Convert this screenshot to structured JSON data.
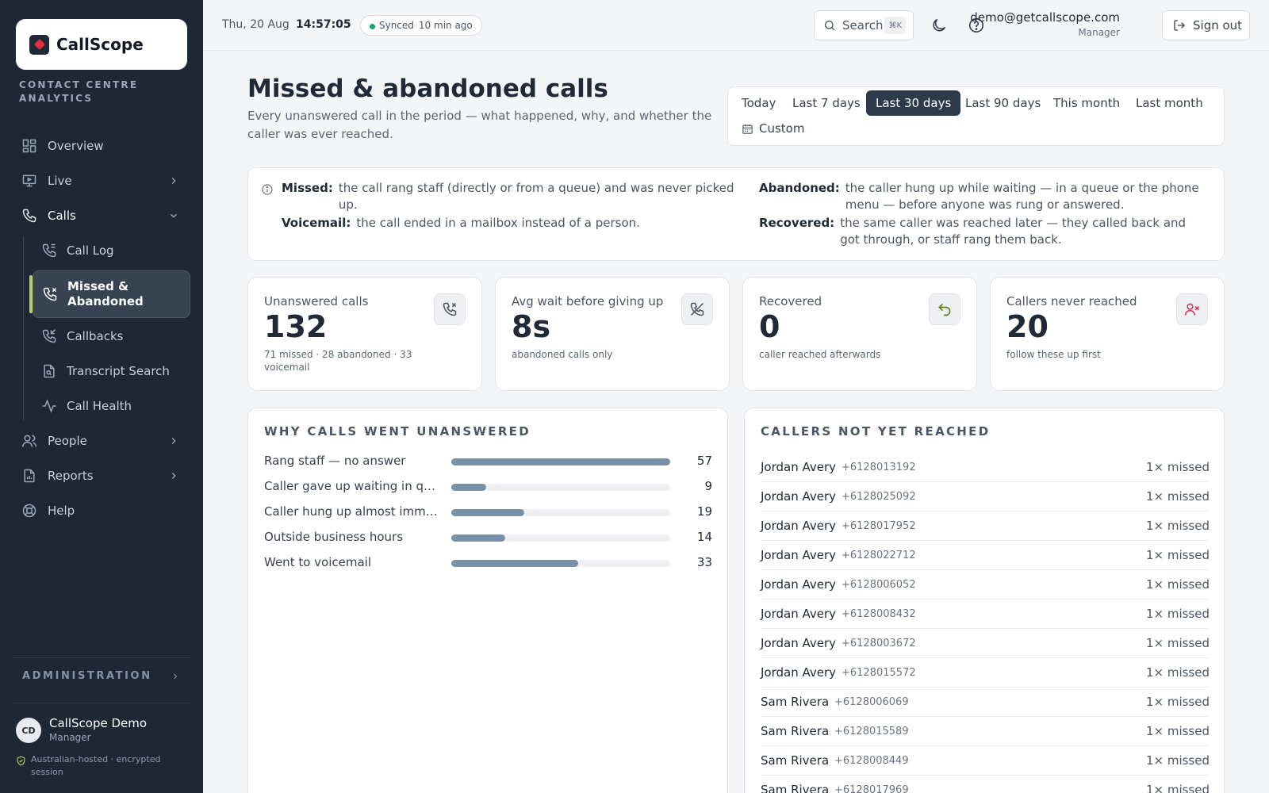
{
  "brand": {
    "name": "CallScope",
    "tagline": "CONTACT CENTRE ANALYTICS"
  },
  "sidebar": {
    "items": [
      {
        "label": "Overview",
        "icon": "grid-icon"
      },
      {
        "label": "Live",
        "icon": "monitor-icon"
      },
      {
        "label": "Calls",
        "icon": "phone-icon"
      }
    ],
    "calls_sub": [
      {
        "label": "Call Log",
        "icon": "phone-log-icon"
      },
      {
        "label": "Missed & Abandoned",
        "icon": "phone-missed-icon"
      },
      {
        "label": "Callbacks",
        "icon": "phone-callback-icon"
      },
      {
        "label": "Transcript Search",
        "icon": "file-search-icon"
      },
      {
        "label": "Call Health",
        "icon": "activity-icon"
      }
    ],
    "after": [
      {
        "label": "People",
        "icon": "users-icon"
      },
      {
        "label": "Reports",
        "icon": "report-icon"
      },
      {
        "label": "Help",
        "icon": "lifebuoy-icon"
      }
    ],
    "admin_label": "ADMINISTRATION",
    "user": {
      "initials": "CD",
      "name": "CallScope Demo",
      "role": "Manager"
    },
    "security_note": "Australian-hosted · encrypted session"
  },
  "topbar": {
    "date": "Thu, 20 Aug",
    "time": "14:57:05",
    "sync_status": "Synced",
    "sync_ago": "10 min ago",
    "search_label": "Search",
    "search_shortcut": "⌘K",
    "email": "demo@getcallscope.com",
    "role": "Manager",
    "sign_out": "Sign out"
  },
  "page": {
    "title": "Missed & abandoned calls",
    "description": "Every unanswered call in the period — what happened, why, and whether the caller was ever reached."
  },
  "range": {
    "options": [
      "Today",
      "Last 7 days",
      "Last 30 days",
      "Last 90 days",
      "This month",
      "Last month"
    ],
    "selected": "Last 30 days",
    "custom": "Custom"
  },
  "definitions": {
    "missed_term": "Missed:",
    "missed_text": "the call rang staff (directly or from a queue) and was never picked up.",
    "voicemail_term": "Voicemail:",
    "voicemail_text": "the call ended in a mailbox instead of a person.",
    "abandoned_term": "Abandoned:",
    "abandoned_text": "the caller hung up while waiting — in a queue or the phone menu — before anyone was rung or answered.",
    "recovered_term": "Recovered:",
    "recovered_text": "the same caller was reached later — they called back and got through, or staff rang them back."
  },
  "kpis": [
    {
      "label": "Unanswered calls",
      "value": "132",
      "sub": "71 missed · 28 abandoned · 33 voicemail",
      "icon": "phone-missed-icon"
    },
    {
      "label": "Avg wait before giving up",
      "value": "8s",
      "sub": "abandoned calls only",
      "icon": "phone-off-icon"
    },
    {
      "label": "Recovered",
      "value": "0",
      "sub": "caller reached afterwards",
      "icon": "undo-icon"
    },
    {
      "label": "Callers never reached",
      "value": "20",
      "sub": "follow these up first",
      "icon": "user-x-icon"
    }
  ],
  "reasons_panel": {
    "title": "WHY CALLS WENT UNANSWERED",
    "max": 57,
    "reasons": [
      {
        "label": "Rang staff — no answer",
        "value": 57
      },
      {
        "label": "Caller gave up waiting in queue",
        "value": 9
      },
      {
        "label": "Caller hung up almost immediately",
        "value": 19
      },
      {
        "label": "Outside business hours",
        "value": 14
      },
      {
        "label": "Went to voicemail",
        "value": 33
      }
    ]
  },
  "callers_panel": {
    "title": "CALLERS NOT YET REACHED",
    "callers": [
      {
        "name": "Jordan Avery",
        "phone": "+6128013192",
        "missed": "1× missed"
      },
      {
        "name": "Jordan Avery",
        "phone": "+6128025092",
        "missed": "1× missed"
      },
      {
        "name": "Jordan Avery",
        "phone": "+6128017952",
        "missed": "1× missed"
      },
      {
        "name": "Jordan Avery",
        "phone": "+6128022712",
        "missed": "1× missed"
      },
      {
        "name": "Jordan Avery",
        "phone": "+6128006052",
        "missed": "1× missed"
      },
      {
        "name": "Jordan Avery",
        "phone": "+6128008432",
        "missed": "1× missed"
      },
      {
        "name": "Jordan Avery",
        "phone": "+6128003672",
        "missed": "1× missed"
      },
      {
        "name": "Jordan Avery",
        "phone": "+6128015572",
        "missed": "1× missed"
      },
      {
        "name": "Sam Rivera",
        "phone": "+6128006069",
        "missed": "1× missed"
      },
      {
        "name": "Sam Rivera",
        "phone": "+6128015589",
        "missed": "1× missed"
      },
      {
        "name": "Sam Rivera",
        "phone": "+6128008449",
        "missed": "1× missed"
      },
      {
        "name": "Sam Rivera",
        "phone": "+6128017969",
        "missed": "1× missed"
      }
    ]
  }
}
